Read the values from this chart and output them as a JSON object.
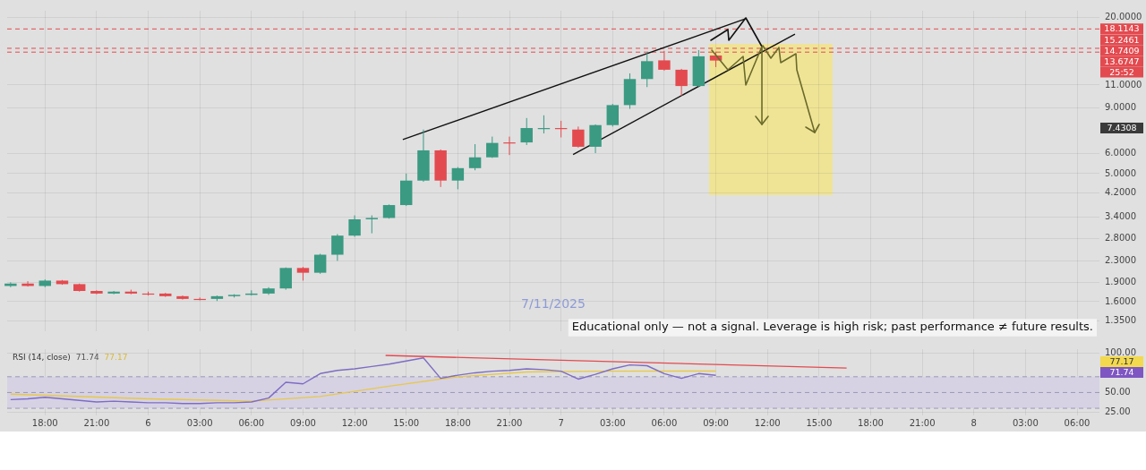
{
  "chart_data": [
    {
      "type": "candlestick",
      "x": [
        "2025-11-05T16:00",
        "2025-11-05T17:00",
        "2025-11-05T18:00",
        "2025-11-05T19:00",
        "2025-11-05T20:00",
        "2025-11-05T21:00",
        "2025-11-05T22:00",
        "2025-11-05T23:00",
        "2025-11-06T00:00",
        "2025-11-06T01:00",
        "2025-11-06T02:00",
        "2025-11-06T03:00",
        "2025-11-06T04:00",
        "2025-11-06T05:00",
        "2025-11-06T06:00",
        "2025-11-06T07:00",
        "2025-11-06T08:00",
        "2025-11-06T09:00",
        "2025-11-06T10:00",
        "2025-11-06T11:00",
        "2025-11-06T12:00",
        "2025-11-06T13:00",
        "2025-11-06T14:00",
        "2025-11-06T15:00",
        "2025-11-06T16:00",
        "2025-11-06T17:00",
        "2025-11-06T18:00",
        "2025-11-06T19:00",
        "2025-11-06T20:00",
        "2025-11-06T21:00",
        "2025-11-06T22:00",
        "2025-11-06T23:00",
        "2025-11-07T00:00",
        "2025-11-07T01:00",
        "2025-11-07T02:00",
        "2025-11-07T03:00",
        "2025-11-07T04:00",
        "2025-11-07T05:00",
        "2025-11-07T06:00",
        "2025-11-07T07:00",
        "2025-11-07T08:00",
        "2025-11-07T09:00"
      ],
      "ohlc": [
        [
          1.84,
          1.9,
          1.82,
          1.88
        ],
        [
          1.88,
          1.92,
          1.83,
          1.84
        ],
        [
          1.84,
          1.95,
          1.82,
          1.93
        ],
        [
          1.93,
          1.94,
          1.86,
          1.87
        ],
        [
          1.87,
          1.88,
          1.75,
          1.76
        ],
        [
          1.76,
          1.77,
          1.71,
          1.72
        ],
        [
          1.72,
          1.76,
          1.71,
          1.75
        ],
        [
          1.75,
          1.78,
          1.71,
          1.72
        ],
        [
          1.72,
          1.75,
          1.69,
          1.72
        ],
        [
          1.72,
          1.73,
          1.67,
          1.68
        ],
        [
          1.68,
          1.69,
          1.63,
          1.64
        ],
        [
          1.64,
          1.66,
          1.62,
          1.64
        ],
        [
          1.64,
          1.69,
          1.61,
          1.68
        ],
        [
          1.68,
          1.71,
          1.66,
          1.7
        ],
        [
          1.7,
          1.77,
          1.69,
          1.72
        ],
        [
          1.72,
          1.82,
          1.7,
          1.8
        ],
        [
          1.8,
          2.17,
          1.78,
          2.16
        ],
        [
          2.16,
          2.18,
          1.93,
          2.07
        ],
        [
          2.07,
          2.45,
          2.05,
          2.43
        ],
        [
          2.43,
          2.92,
          2.3,
          2.88
        ],
        [
          2.88,
          3.45,
          2.85,
          3.33
        ],
        [
          3.33,
          3.45,
          2.94,
          3.37
        ],
        [
          3.37,
          3.8,
          3.35,
          3.78
        ],
        [
          3.78,
          5.0,
          3.75,
          4.7
        ],
        [
          4.7,
          7.4,
          4.65,
          6.15
        ],
        [
          6.15,
          6.2,
          4.44,
          4.7
        ],
        [
          4.7,
          5.3,
          4.35,
          5.25
        ],
        [
          5.25,
          6.5,
          5.15,
          5.78
        ],
        [
          5.78,
          6.95,
          5.75,
          6.57
        ],
        [
          6.6,
          6.95,
          5.9,
          6.58
        ],
        [
          6.6,
          8.2,
          6.45,
          7.5
        ],
        [
          7.45,
          8.4,
          7.15,
          7.5
        ],
        [
          7.5,
          8.0,
          6.9,
          7.45
        ],
        [
          7.4,
          7.6,
          6.3,
          6.35
        ],
        [
          6.35,
          7.75,
          6.0,
          7.7
        ],
        [
          7.7,
          9.3,
          7.6,
          9.2
        ],
        [
          9.2,
          12.2,
          8.9,
          11.6
        ],
        [
          11.6,
          14.7,
          10.8,
          13.6
        ],
        [
          13.7,
          14.9,
          12.5,
          12.6
        ],
        [
          12.6,
          12.7,
          10.0,
          10.9
        ],
        [
          10.9,
          15.0,
          10.8,
          14.2
        ],
        [
          14.3,
          14.8,
          12.9,
          13.6747
        ]
      ],
      "colors": [
        "#3a9a82",
        "#e34a4f",
        "#3a9a82",
        "#e34a4f",
        "#e34a4f",
        "#e34a4f",
        "#3a9a82",
        "#e34a4f",
        "#e34a4f",
        "#e34a4f",
        "#e34a4f",
        "#e34a4f",
        "#3a9a82",
        "#3a9a82",
        "#3a9a82",
        "#3a9a82",
        "#3a9a82",
        "#e34a4f",
        "#3a9a82",
        "#3a9a82",
        "#3a9a82",
        "#3a9a82",
        "#3a9a82",
        "#3a9a82",
        "#3a9a82",
        "#e34a4f",
        "#3a9a82",
        "#3a9a82",
        "#3a9a82",
        "#e34a4f",
        "#3a9a82",
        "#3a9a82",
        "#e34a4f",
        "#e34a4f",
        "#3a9a82",
        "#3a9a82",
        "#3a9a82",
        "#3a9a82",
        "#e34a4f",
        "#e34a4f",
        "#3a9a82",
        "#e34a4f"
      ],
      "series": [
        {
          "type": "line",
          "color": "#111111",
          "x": [
            "2025-11-06T14:48",
            "2025-11-07T10:42"
          ],
          "values": [
            6.77,
            19.8
          ]
        },
        {
          "type": "line",
          "color": "#111111",
          "x": [
            "2025-11-07T00:42",
            "2025-11-07T13:36"
          ],
          "values": [
            5.93,
            17.3
          ]
        }
      ],
      "xlim": [
        "2025-11-05T15:48",
        "2025-11-08T07:18"
      ],
      "xticks": [
        "2025-11-05T18:00",
        "2025-11-05T21:00",
        "2025-11-06T00:00",
        "2025-11-06T03:00",
        "2025-11-06T06:00",
        "2025-11-06T09:00",
        "2025-11-06T12:00",
        "2025-11-06T15:00",
        "2025-11-06T18:00",
        "2025-11-06T21:00",
        "2025-11-07T00:00",
        "2025-11-07T03:00",
        "2025-11-07T06:00",
        "2025-11-07T09:00",
        "2025-11-07T12:00",
        "2025-11-07T15:00",
        "2025-11-07T18:00",
        "2025-11-07T21:00",
        "2025-11-08T00:00",
        "2025-11-08T03:00",
        "2025-11-08T06:00"
      ],
      "ylim": [
        1.23,
        21.3
      ],
      "yticks": [
        {
          "value": 1.35,
          "label": "1.3500"
        },
        {
          "value": 1.6,
          "label": "1.6000"
        },
        {
          "value": 1.9,
          "label": "1.9000"
        },
        {
          "value": 2.3,
          "label": "2.3000"
        },
        {
          "value": 2.8,
          "label": "2.8000"
        },
        {
          "value": 3.4,
          "label": "3.4000"
        },
        {
          "value": 4.2,
          "label": "4.2000"
        },
        {
          "value": 5,
          "label": "5.0000"
        },
        {
          "value": 6,
          "label": "6.0000"
        },
        {
          "value": 9,
          "label": "9.0000"
        },
        {
          "value": 11,
          "label": "11.0000"
        },
        {
          "value": 20,
          "label": "20.0000"
        }
      ],
      "log": true,
      "grid": true,
      "tick_labels": "y",
      "ref_lines": [
        {
          "axis": "y",
          "value": 18.1143,
          "label": "18.1143",
          "color": "#e34a4f",
          "line_style": "dashed"
        },
        {
          "axis": "y",
          "value": 15.2461,
          "label": "15.2461",
          "color": "#e34a4f",
          "line_style": "dashed"
        },
        {
          "axis": "y",
          "value": 14.7409,
          "label": "14.7409",
          "color": "#e34a4f",
          "line_style": "dashed"
        }
      ],
      "annotations": [
        "13.6747",
        "25:52",
        "7.4308",
        "7/11/2025",
        "Educational only — not a signal. Leverage is high risk; past performance ≠ future results."
      ]
    },
    {
      "type": "line",
      "title": "RSI (14, close)",
      "x": [
        "2025-11-05T16:00",
        "2025-11-05T17:00",
        "2025-11-05T18:00",
        "2025-11-05T19:00",
        "2025-11-05T20:00",
        "2025-11-05T21:00",
        "2025-11-05T22:00",
        "2025-11-05T23:00",
        "2025-11-06T00:00",
        "2025-11-06T01:00",
        "2025-11-06T02:00",
        "2025-11-06T03:00",
        "2025-11-06T04:00",
        "2025-11-06T05:00",
        "2025-11-06T06:00",
        "2025-11-06T07:00",
        "2025-11-06T08:00",
        "2025-11-06T09:00",
        "2025-11-06T10:00",
        "2025-11-06T11:00",
        "2025-11-06T12:00",
        "2025-11-06T13:00",
        "2025-11-06T14:00",
        "2025-11-06T15:00",
        "2025-11-06T16:00",
        "2025-11-06T17:00",
        "2025-11-06T18:00",
        "2025-11-06T19:00",
        "2025-11-06T20:00",
        "2025-11-06T21:00",
        "2025-11-06T22:00",
        "2025-11-06T23:00",
        "2025-11-07T00:00",
        "2025-11-07T01:00",
        "2025-11-07T02:00",
        "2025-11-07T03:00",
        "2025-11-07T04:00",
        "2025-11-07T05:00",
        "2025-11-07T06:00",
        "2025-11-07T07:00",
        "2025-11-07T08:00",
        "2025-11-07T09:00"
      ],
      "series": [
        {
          "color": "#7e6cc4",
          "values": [
            41,
            42,
            44,
            42,
            40,
            38,
            39,
            38,
            37,
            37,
            36,
            36,
            37,
            37,
            38,
            43,
            63,
            61,
            74,
            78,
            80,
            83,
            86,
            90,
            94,
            68,
            72,
            75,
            77,
            78,
            80,
            79,
            77,
            67,
            73,
            80,
            85,
            84,
            74,
            68,
            74,
            71.74
          ]
        },
        {
          "color": "#e8c84a",
          "x": [
            "2025-11-05T16:00",
            "2025-11-06T00:00",
            "2025-11-06T06:00",
            "2025-11-06T10:00",
            "2025-11-06T14:00",
            "2025-11-06T18:00",
            "2025-11-06T22:00",
            "2025-11-07T02:00",
            "2025-11-07T09:00"
          ],
          "values": [
            48,
            42,
            39,
            45,
            58,
            70,
            76,
            77,
            77.17
          ]
        },
        {
          "color": "#e34a4f",
          "x": [
            "2025-11-06T13:48",
            "2025-11-07T16:36"
          ],
          "values": [
            97,
            81
          ]
        }
      ],
      "xlim": [
        "2025-11-05T15:48",
        "2025-11-08T07:18"
      ],
      "xticks": [
        {
          "value": "2025-11-05T18:00",
          "label": "18:00"
        },
        {
          "value": "2025-11-05T21:00",
          "label": "21:00"
        },
        {
          "value": "2025-11-06T00:00",
          "label": "6"
        },
        {
          "value": "2025-11-06T03:00",
          "label": "03:00"
        },
        {
          "value": "2025-11-06T06:00",
          "label": "06:00"
        },
        {
          "value": "2025-11-06T09:00",
          "label": "09:00"
        },
        {
          "value": "2025-11-06T12:00",
          "label": "12:00"
        },
        {
          "value": "2025-11-06T15:00",
          "label": "15:00"
        },
        {
          "value": "2025-11-06T18:00",
          "label": "18:00"
        },
        {
          "value": "2025-11-06T21:00",
          "label": "21:00"
        },
        {
          "value": "2025-11-07T00:00",
          "label": "7"
        },
        {
          "value": "2025-11-07T03:00",
          "label": "03:00"
        },
        {
          "value": "2025-11-07T06:00",
          "label": "06:00"
        },
        {
          "value": "2025-11-07T09:00",
          "label": "09:00"
        },
        {
          "value": "2025-11-07T12:00",
          "label": "12:00"
        },
        {
          "value": "2025-11-07T15:00",
          "label": "15:00"
        },
        {
          "value": "2025-11-07T18:00",
          "label": "18:00"
        },
        {
          "value": "2025-11-07T21:00",
          "label": "21:00"
        },
        {
          "value": "2025-11-08T00:00",
          "label": "8"
        },
        {
          "value": "2025-11-08T03:00",
          "label": "03:00"
        },
        {
          "value": "2025-11-08T06:00",
          "label": "06:00"
        }
      ],
      "ylim": [
        21,
        105
      ],
      "yticks": [
        {
          "value": 25,
          "label": "25.00"
        },
        {
          "value": 50,
          "label": "50.00"
        },
        {
          "value": 100,
          "label": "100.00"
        }
      ],
      "grid": true,
      "ref_lines": [
        {
          "axis": "y",
          "value": 70,
          "color": "#9a97b3",
          "line_style": "dashed"
        },
        {
          "axis": "y",
          "value": 50,
          "color": "#9a97b3",
          "line_style": "dashed"
        },
        {
          "axis": "y",
          "value": 30,
          "color": "#9a97b3",
          "line_style": "dashed"
        }
      ],
      "bands": [
        {
          "axis": "y",
          "from": 30,
          "to": 70,
          "color": "#d6d2e4"
        }
      ],
      "annotations": [
        "71.74",
        "77.17",
        "77.17",
        "71.74"
      ]
    }
  ]
}
